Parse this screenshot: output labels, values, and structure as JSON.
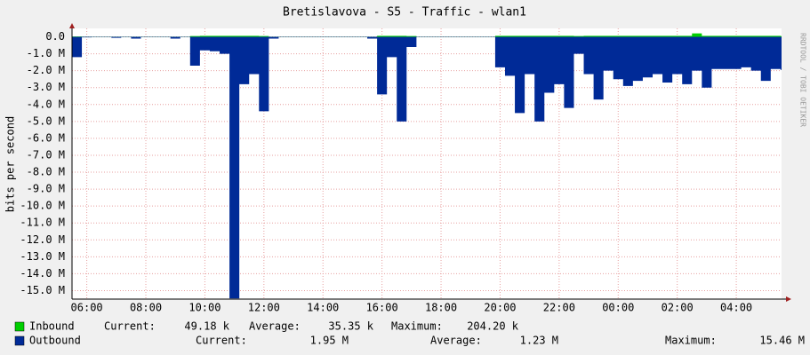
{
  "chart_data": {
    "type": "area",
    "title": "Bretislavova - S5 - Traffic - wlan1",
    "y_label": "bits per second",
    "watermark": "RRDTOOL / TOBI OETIKER",
    "x": [
      "05:30",
      "05:50",
      "06:10",
      "06:30",
      "06:50",
      "07:10",
      "07:30",
      "07:50",
      "08:10",
      "08:30",
      "08:50",
      "09:10",
      "09:30",
      "09:50",
      "10:10",
      "10:30",
      "10:50",
      "11:10",
      "11:30",
      "11:50",
      "12:10",
      "12:30",
      "12:50",
      "13:10",
      "13:30",
      "13:50",
      "14:10",
      "14:30",
      "14:50",
      "15:10",
      "15:30",
      "15:50",
      "16:10",
      "16:30",
      "16:50",
      "17:10",
      "17:30",
      "17:50",
      "18:10",
      "18:30",
      "18:50",
      "19:10",
      "19:30",
      "19:50",
      "20:10",
      "20:30",
      "20:50",
      "21:10",
      "21:30",
      "21:50",
      "22:10",
      "22:30",
      "22:50",
      "23:10",
      "23:30",
      "23:50",
      "00:10",
      "00:30",
      "00:50",
      "01:10",
      "01:30",
      "01:50",
      "02:10",
      "02:30",
      "02:50",
      "03:10",
      "03:30",
      "03:50",
      "04:10",
      "04:30",
      "04:50",
      "05:10",
      "05:30"
    ],
    "xlim": [
      "05:30",
      "05:32"
    ],
    "xticks": [
      "06:00",
      "08:00",
      "10:00",
      "12:00",
      "14:00",
      "16:00",
      "18:00",
      "20:00",
      "22:00",
      "00:00",
      "02:00",
      "04:00"
    ],
    "ylim": [
      -15500000,
      500000
    ],
    "yticks": [
      {
        "value": 0,
        "label": "0.0"
      },
      {
        "value": -1000000,
        "label": "-1.0 M"
      },
      {
        "value": -2000000,
        "label": "-2.0 M"
      },
      {
        "value": -3000000,
        "label": "-3.0 M"
      },
      {
        "value": -4000000,
        "label": "-4.0 M"
      },
      {
        "value": -5000000,
        "label": "-5.0 M"
      },
      {
        "value": -6000000,
        "label": "-6.0 M"
      },
      {
        "value": -7000000,
        "label": "-7.0 M"
      },
      {
        "value": -8000000,
        "label": "-8.0 M"
      },
      {
        "value": -9000000,
        "label": "-9.0 M"
      },
      {
        "value": -10000000,
        "label": "-10.0 M"
      },
      {
        "value": -11000000,
        "label": "-11.0 M"
      },
      {
        "value": -12000000,
        "label": "-12.0 M"
      },
      {
        "value": -13000000,
        "label": "-13.0 M"
      },
      {
        "value": -14000000,
        "label": "-14.0 M"
      },
      {
        "value": -15000000,
        "label": "-15.0 M"
      }
    ],
    "grid": true,
    "stat_labels": [
      "Current:",
      "Average:",
      "Maximum:"
    ],
    "series": [
      {
        "name": "Inbound",
        "color": "#00cf00",
        "stats": [
          "49.18 k",
          "35.35 k",
          "204.20 k"
        ],
        "values": [
          20000,
          10000,
          10000,
          10000,
          10000,
          10000,
          10000,
          10000,
          10000,
          10000,
          10000,
          10000,
          50000,
          60000,
          60000,
          60000,
          60000,
          60000,
          60000,
          50000,
          10000,
          10000,
          10000,
          10000,
          10000,
          10000,
          10000,
          10000,
          10000,
          10000,
          10000,
          60000,
          60000,
          60000,
          50000,
          10000,
          10000,
          10000,
          10000,
          10000,
          10000,
          10000,
          10000,
          60000,
          60000,
          60000,
          60000,
          60000,
          60000,
          60000,
          60000,
          50000,
          60000,
          60000,
          60000,
          60000,
          60000,
          60000,
          60000,
          60000,
          60000,
          60000,
          60000,
          204200,
          60000,
          60000,
          60000,
          60000,
          60000,
          60000,
          60000,
          60000,
          49180
        ]
      },
      {
        "name": "Outbound",
        "color": "#002a97",
        "stats": [
          "1.95 M",
          "1.23 M",
          "15.46 M"
        ],
        "values": [
          -1200000,
          -30000,
          -20000,
          -20000,
          -60000,
          -20000,
          -100000,
          -20000,
          -20000,
          -20000,
          -100000,
          -20000,
          -1700000,
          -800000,
          -850000,
          -1000000,
          -15460000,
          -2800000,
          -2200000,
          -4400000,
          -100000,
          -20000,
          -20000,
          -20000,
          -20000,
          -20000,
          -20000,
          -20000,
          -20000,
          -20000,
          -100000,
          -3400000,
          -1200000,
          -5000000,
          -600000,
          -20000,
          -20000,
          -20000,
          -20000,
          -20000,
          -20000,
          -20000,
          -20000,
          -1800000,
          -2300000,
          -4500000,
          -2200000,
          -5000000,
          -3300000,
          -2800000,
          -4200000,
          -1000000,
          -2200000,
          -3700000,
          -2000000,
          -2500000,
          -2900000,
          -2600000,
          -2400000,
          -2200000,
          -2700000,
          -2200000,
          -2800000,
          -2000000,
          -3000000,
          -1900000,
          -1900000,
          -1900000,
          -1800000,
          -2000000,
          -2600000,
          -1900000,
          -1950000
        ]
      }
    ]
  }
}
